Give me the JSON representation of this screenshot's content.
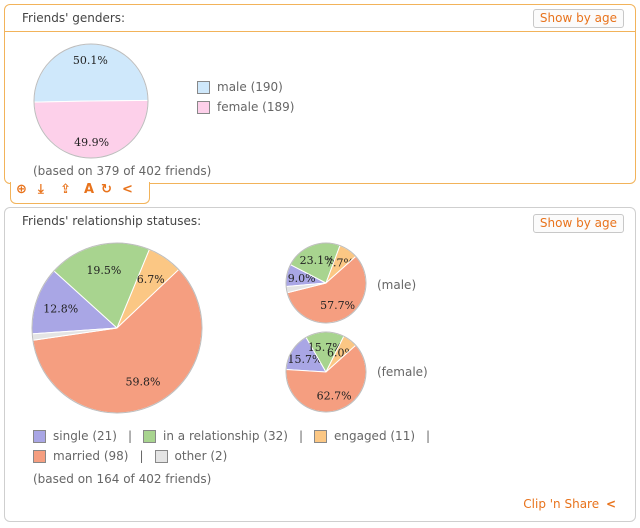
{
  "genders": {
    "title": "Friends' genders:",
    "age_button": "Show by age",
    "footnote": "(based on 379 of 402 friends)",
    "tools": [
      "search-plus-icon",
      "download-icon",
      "share-out-icon",
      "font-icon",
      "refresh-icon",
      "share-icon"
    ],
    "tool_glyphs": [
      "⊕",
      "⤓",
      "⇪",
      "A",
      "↻",
      "<"
    ]
  },
  "relationships": {
    "title": "Friends' relationship statuses:",
    "age_button": "Show by age",
    "footnote": "(based on 164 of 402 friends)",
    "clip_share": "Clip 'n Share"
  },
  "chart_data": [
    {
      "type": "pie",
      "title": "Friends' genders:",
      "categories": [
        "male",
        "female"
      ],
      "legend": [
        "male (190)",
        "female (189)"
      ],
      "values": [
        190,
        189
      ],
      "labels": [
        "50.1%",
        "49.9%"
      ],
      "colors": [
        "#cfe8fb",
        "#fdd0ea"
      ]
    },
    {
      "type": "pie",
      "title": "Friends' relationship statuses:",
      "categories": [
        "single",
        "in a relationship",
        "engaged",
        "married",
        "other"
      ],
      "legend": [
        "single (21)",
        "in a relationship (32)",
        "engaged (11)",
        "married (98)",
        "other (2)"
      ],
      "values": [
        21,
        32,
        11,
        98,
        2
      ],
      "labels": [
        "12.8%",
        "19.5%",
        "6.7%",
        "59.8%",
        ""
      ],
      "colors": [
        "#a9a6e5",
        "#a8d48f",
        "#fbc784",
        "#f59e80",
        "#e4e4e4"
      ]
    },
    {
      "type": "pie",
      "title": "(male)",
      "categories": [
        "single",
        "in a relationship",
        "engaged",
        "married",
        "other"
      ],
      "values": [
        9.0,
        23.1,
        7.7,
        57.7,
        2.5
      ],
      "labels": [
        "9.0%",
        "23.1%",
        "7.7%",
        "57.7%",
        ""
      ],
      "colors": [
        "#a9a6e5",
        "#a8d48f",
        "#fbc784",
        "#f59e80",
        "#e4e4e4"
      ]
    },
    {
      "type": "pie",
      "title": "(female)",
      "categories": [
        "single",
        "in a relationship",
        "engaged",
        "married",
        "other"
      ],
      "values": [
        15.7,
        15.7,
        6.0,
        62.7,
        0
      ],
      "labels": [
        "15.7%",
        "15.7%",
        "6.0%",
        "62.7%",
        ""
      ],
      "colors": [
        "#a9a6e5",
        "#a8d48f",
        "#fbc784",
        "#f59e80",
        "#e4e4e4"
      ]
    }
  ]
}
